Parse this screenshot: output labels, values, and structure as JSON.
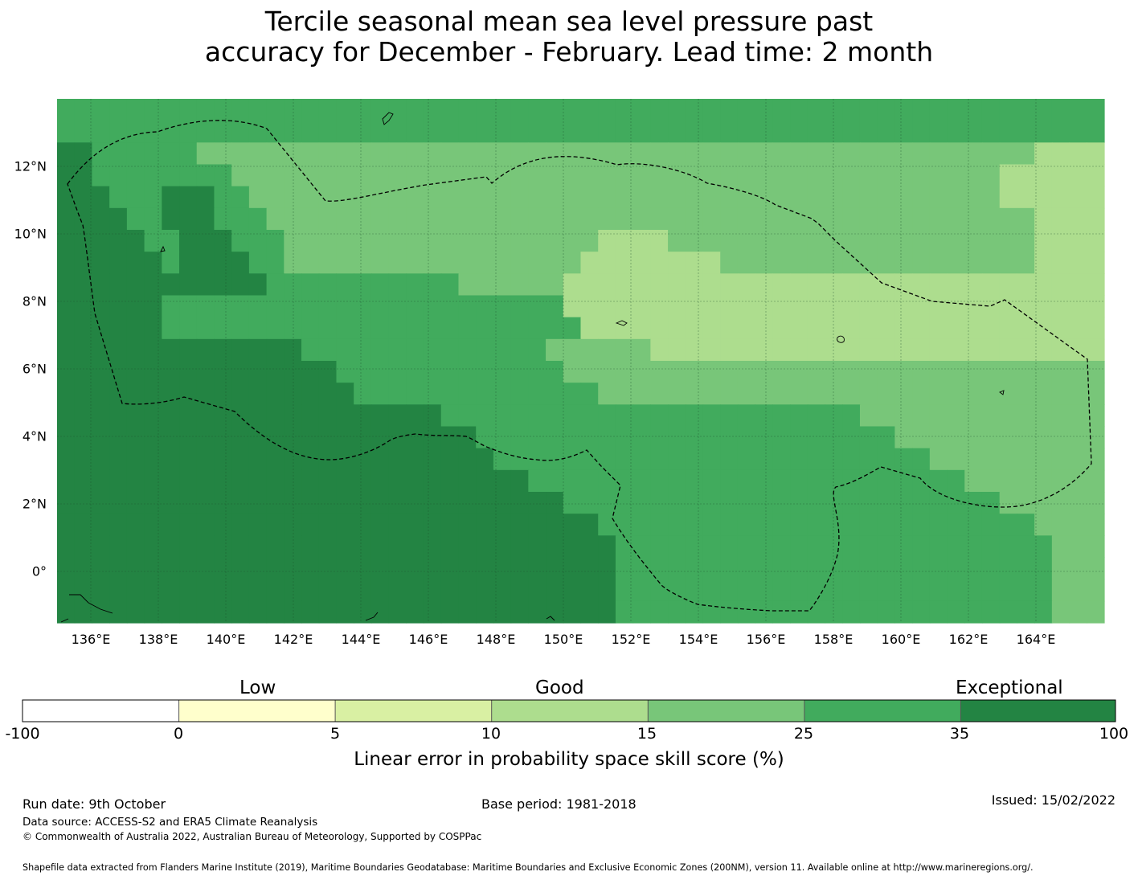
{
  "title_line1": "Tercile seasonal mean sea level pressure past",
  "title_line2": "accuracy for December - February. Lead time: 2 month",
  "map": {
    "lon_labels": [
      "136°E",
      "138°E",
      "140°E",
      "142°E",
      "144°E",
      "146°E",
      "148°E",
      "150°E",
      "152°E",
      "154°E",
      "156°E",
      "158°E",
      "160°E",
      "162°E",
      "164°E"
    ],
    "lat_labels": [
      "12°N",
      "10°N",
      "8°N",
      "6°N",
      "4°N",
      "2°N",
      "0°"
    ],
    "grid_rows": [
      "CCCCCCCCCCCCCCCCCCCCCCCCCCCCCCCCCCCCCCCCCCCCCCCCCCCCCCCCCCCC",
      "CCCCCCCCCCCCCCCCCCCCCCCCCCCCCCCCCCCCCCCCCCCCCCCCCCCCCCCCCCCC",
      "DDCCCCCCBBBBBBBBBBBBBBBBBBBBBBBBBBBBBBBBBBBBBBBBBBBBBBBBAAAA",
      "DDCCCCCCCCBBBBBBBBBBBBBBBBBBBBBBBBBBBBBBBBBBBBBBBBBBBBAAAAAA",
      "DDDCCCDDDCCBBBBBBBBBBBBBBBBBBBBBBBBBBBBBBBBBBBBBBBBBBBAAAAAA",
      "DDDDCCDDDCCCBBBBBBBBBBBBBBBBBBBBBBBBBBBBBBBBBBBBBBBBBBBBAAAA",
      "DDDDDCCDDDCCCBBBBBBBBBBBBBBBBBBAAAABBBBBBBBBBBBBBBBBBBBBAAAA",
      "DDDDDDCDDDDCCBBBBBBBBBBBBBBBBBAAAAAAAABBBBBBBBBBBBBBBBBBAAAA",
      "DDDDDDDDDDDDCCCCCCCCCCCBBBBBBAAAAAAAAAAAAAAAAAAAAAAAAAAAAAAA",
      "DDDDDDCCCCCCCCCCCCCCCCCCCCCCCAAAAAAAAAAAAAAAAAAAAAAAAAAAAAAA",
      "DDDDDDCCCCCCCCCCCCCCCCCCCCCCCCAAAAAAAAAAAAAAAAAAAAAAAAAAAAAA",
      "DDDDDDDDDDDDDDCCCCCCCCCCCCCCBBBBBBAAAAAAAAAAAAAAAAAAAAAAAAAA",
      "DDDDDDDDDDDDDDDDCCCCCCCCCCCCCBBBBBBBBBBBBBBBBBBBBBBBBBBBBBBB",
      "DDDDDDDDDDDDDDDDDCCCCCCCCCCCCCCBBBBBBBBBBBBBBBBBBBBBBBBBBBBB",
      "DDDDDDDDDDDDDDDDDDDDDDCCCCCCCCCCCCCCCCCCCCCCCCBBBBBBBBBBBBBB",
      "DDDDDDDDDDDDDDDDDDDDDDDDCCCCCCCCCCCCCCCCCCCCCCCCBBBBBBBBBBBB",
      "DDDDDDDDDDDDDDDDDDDDDDDDDCCCCCCCCCCCCCCCCCCCCCCCCCBBBBBBBBBB",
      "DDDDDDDDDDDDDDDDDDDDDDDDDDDCCCCCCCCCCCCCCCCCCCCCCCCCBBBBBBBB",
      "DDDDDDDDDDDDDDDDDDDDDDDDDDDDDCCCCCCCCCCCCCCCCCCCCCCCCCBBBBBB",
      "DDDDDDDDDDDDDDDDDDDDDDDDDDDDDDDCCCCCCCCCCCCCCCCCCCCCCCCCBBBB",
      "DDDDDDDDDDDDDDDDDDDDDDDDDDDDDDDDCCCCCCCCCCCCCCCCCCCCCCCCCBBB",
      "DDDDDDDDDDDDDDDDDDDDDDDDDDDDDDDDCCCCCCCCCCCCCCCCCCCCCCCCCBBB",
      "DDDDDDDDDDDDDDDDDDDDDDDDDDDDDDDDCCCCCCCCCCCCCCCCCCCCCCCCCBBB",
      "DDDDDDDDDDDDDDDDDDDDDDDDDDDDDDDDCCCCCCCCCCCCCCCCCCCCCCCCCBBB"
    ],
    "grid_rows_note": "rows north to south; A=10-15, B=15-25, C=25-35, D=35-100"
  },
  "colorbar": {
    "captions": [
      "Low",
      "Good",
      "Exceptional"
    ],
    "ticks": [
      "-100",
      "0",
      "5",
      "10",
      "15",
      "25",
      "35",
      "100"
    ],
    "colors": [
      "#ffffff",
      "#ffffcc",
      "#d9f0a3",
      "#addd8e",
      "#78c679",
      "#41ab5d",
      "#238443"
    ],
    "label": "Linear error in probability space skill score (%)"
  },
  "footer": {
    "run_date": "Run date: 9th October",
    "base_period": "Base period: 1981-2018",
    "issued": "Issued: 15/02/2022",
    "data_source": "Data source: ACCESS-S2 and ERA5 Climate Reanalysis",
    "copyright": "© Commonwealth of Australia 2022, Australian Bureau of Meteorology, Supported by COSPPac",
    "shapefile": "Shapefile data extracted from Flanders Marine Institute (2019), Maritime Boundaries Geodatabase: Maritime Boundaries and Exclusive Economic Zones (200NM), version 11. Available online at http://www.marineregions.org/."
  }
}
